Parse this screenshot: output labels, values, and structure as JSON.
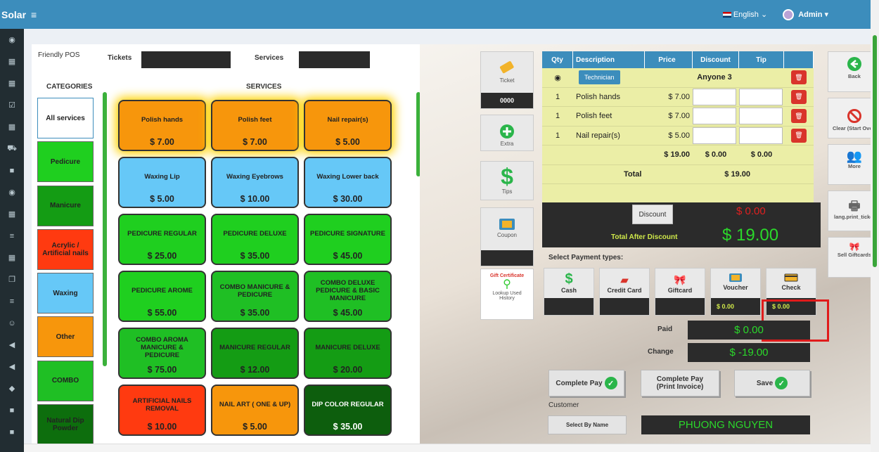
{
  "topbar": {
    "brand": "Solar",
    "menu_icon": "≡",
    "language": "English",
    "user": "Admin"
  },
  "panel_left": {
    "app_label": "Friendly POS",
    "tickets_label": "Tickets",
    "services_label": "Services",
    "categories_heading": "CATEGORIES",
    "services_heading": "SERVICES"
  },
  "categories": [
    {
      "label": "All services",
      "color": "#ffffff"
    },
    {
      "label": "Pedicure",
      "color": "#1fcf1f"
    },
    {
      "label": "Manicure",
      "color": "#149c14"
    },
    {
      "label": "Acrylic / Artificial nails",
      "color": "#ff3a10"
    },
    {
      "label": "Waxing",
      "color": "#66c8f7"
    },
    {
      "label": "Other",
      "color": "#f7960c"
    },
    {
      "label": "COMBO",
      "color": "#1fbf24"
    },
    {
      "label": "Natural Dip Powder",
      "color": "#0d6e0d"
    }
  ],
  "services": [
    {
      "name": "Polish hands",
      "price": "$ 7.00",
      "color": "#f7960c"
    },
    {
      "name": "Polish feet",
      "price": "$ 7.00",
      "color": "#f7960c"
    },
    {
      "name": "Nail repair(s)",
      "price": "$ 5.00",
      "color": "#f7960c"
    },
    {
      "name": "Waxing Lip",
      "price": "$ 5.00",
      "color": "#66c8f7"
    },
    {
      "name": "Waxing Eyebrows",
      "price": "$ 10.00",
      "color": "#66c8f7"
    },
    {
      "name": "Waxing Lower back",
      "price": "$ 30.00",
      "color": "#66c8f7"
    },
    {
      "name": "PEDICURE REGULAR",
      "price": "$ 25.00",
      "color": "#1fcf1f"
    },
    {
      "name": "PEDICURE DELUXE",
      "price": "$ 35.00",
      "color": "#1fcf1f"
    },
    {
      "name": "PEDICURE SIGNATURE",
      "price": "$ 45.00",
      "color": "#1fcf1f"
    },
    {
      "name": "PEDICURE AROME",
      "price": "$ 55.00",
      "color": "#1fcf1f"
    },
    {
      "name": "COMBO MANICURE & PEDICURE",
      "price": "$ 35.00",
      "color": "#1fbf24"
    },
    {
      "name": "COMBO DELUXE PEDICURE & BASIC MANICURE",
      "price": "$ 45.00",
      "color": "#1fbf24"
    },
    {
      "name": "COMBO AROMA MANICURE & PEDICURE",
      "price": "$ 75.00",
      "color": "#1fbf24"
    },
    {
      "name": "MANICURE REGULAR",
      "price": "$ 12.00",
      "color": "#149c14"
    },
    {
      "name": "MANICURE DELUXE",
      "price": "$ 20.00",
      "color": "#149c14"
    },
    {
      "name": "ARTIFICIAL NAILS REMOVAL",
      "price": "$ 10.00",
      "color": "#ff3a10"
    },
    {
      "name": "NAIL ART ( ONE & UP)",
      "price": "$ 5.00",
      "color": "#f7960c"
    },
    {
      "name": "DIP COLOR REGULAR",
      "price": "$ 35.00",
      "color": "#0d5e0d"
    }
  ],
  "tools": {
    "ticket_label": "Ticket",
    "ticket_number": "0000",
    "extra_label": "Extra",
    "tips_label": "Tips",
    "coupon_label": "Coupon",
    "gift_line1": "Gift Certificate",
    "gift_line2": "Lookup Used History"
  },
  "ticket_table": {
    "headers": [
      "Qty",
      "Description",
      "Price",
      "Discount",
      "Tip"
    ],
    "technician_button": "Technician",
    "technician_value": "Anyone 3",
    "items": [
      {
        "qty": "1",
        "description": "Polish hands",
        "price": "$ 7.00"
      },
      {
        "qty": "1",
        "description": "Polish feet",
        "price": "$ 7.00"
      },
      {
        "qty": "1",
        "description": "Nail repair(s)",
        "price": "$ 5.00"
      }
    ],
    "sum_price": "$ 19.00",
    "sum_discount": "$ 0.00",
    "sum_tip": "$ 0.00",
    "total_label": "Total",
    "total_value": "$ 19.00"
  },
  "side_buttons": {
    "back": "Back",
    "clear": "Clear (Start Over)",
    "more": "More",
    "print": "lang.print_ticket",
    "sell": "Sell Giftcards"
  },
  "discount": {
    "button": "Discount",
    "value": "$ 0.00",
    "total_after_label": "Total After Discount",
    "total_after_value": "$ 19.00"
  },
  "payment": {
    "heading": "Select Payment types:",
    "types": [
      {
        "label": "Cash",
        "amount": ""
      },
      {
        "label": "Credit Card",
        "amount": ""
      },
      {
        "label": "Giftcard",
        "amount": ""
      },
      {
        "label": "Voucher",
        "amount": "$ 0.00"
      },
      {
        "label": "Check",
        "amount": "$ 0.00"
      }
    ],
    "paid_label": "Paid",
    "paid_value": "$ 0.00",
    "change_label": "Change",
    "change_value": "$ -19.00"
  },
  "actions": {
    "complete_pay": "Complete Pay",
    "complete_pay_invoice_1": "Complete Pay",
    "complete_pay_invoice_2": "(Print Invoice)",
    "save": "Save"
  },
  "customer": {
    "label": "Customer",
    "select_button": "Select By Name",
    "name": "PHUONG NGUYEN"
  }
}
